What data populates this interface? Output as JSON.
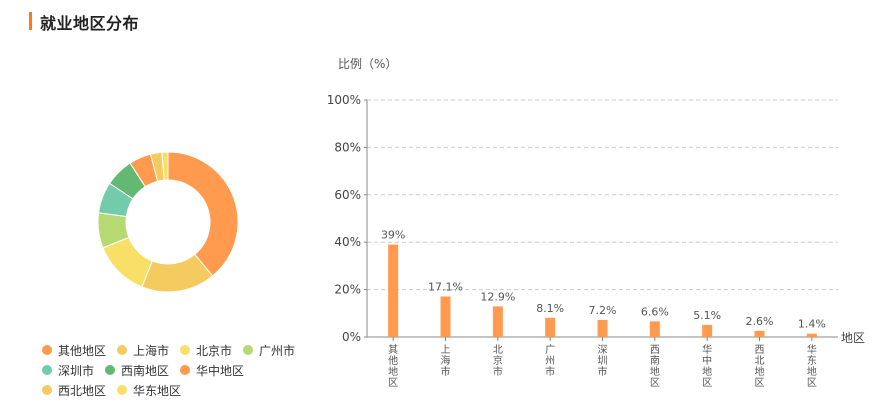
{
  "page": {
    "title": "就业地区分布",
    "accent_color": "#ff7a12"
  },
  "chart_data": [
    {
      "type": "pie",
      "variant": "donut",
      "categories": [
        "其他地区",
        "上海市",
        "北京市",
        "广州市",
        "深圳市",
        "西南地区",
        "华中地区",
        "西北地区",
        "华东地区"
      ],
      "values": [
        39,
        17.1,
        12.9,
        8.1,
        7.2,
        6.6,
        5.1,
        2.6,
        1.4
      ],
      "colors": [
        "#ff9a4e",
        "#f5cb60",
        "#f8e068",
        "#b7d973",
        "#72ccab",
        "#63b972",
        "#ff9a4e",
        "#f5cb60",
        "#f8e068"
      ],
      "legend_position": "bottom-left"
    },
    {
      "type": "bar",
      "categories": [
        "其他地区",
        "上海市",
        "北京市",
        "广州市",
        "深圳市",
        "西南地区",
        "华中地区",
        "西北地区",
        "华东地区"
      ],
      "values": [
        39,
        17.1,
        12.9,
        8.1,
        7.2,
        6.6,
        5.1,
        2.6,
        1.4
      ],
      "value_labels": [
        "39%",
        "17.1%",
        "12.9%",
        "8.1%",
        "7.2%",
        "6.6%",
        "5.1%",
        "2.6%",
        "1.4%"
      ],
      "ylabel": "比例（%）",
      "xlabel": "地区",
      "ylim": [
        0,
        100
      ],
      "yticks": [
        "0%",
        "20%",
        "40%",
        "60%",
        "80%",
        "100%"
      ],
      "grid": true,
      "bar_color": "#ff9a4e"
    }
  ]
}
